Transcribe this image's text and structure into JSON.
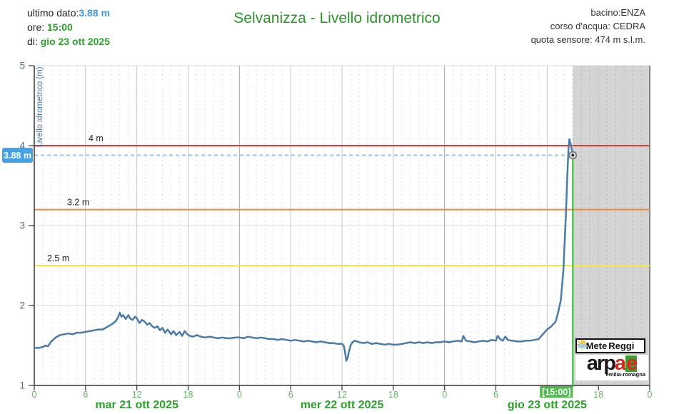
{
  "header": {
    "last_data_label": "ultimo dato:",
    "last_data_value": "3.88 m",
    "time_label": "ore: ",
    "time_value": "15:00",
    "date_label": "di: ",
    "date_value": "gio 23 ott 2025",
    "title": "Selvanizza - Livello idrometrico",
    "basin": "bacino:ENZA",
    "watercourse": "corso d'acqua: CEDRA",
    "sensor_elevation": "quota sensore: 474 m s.l.m."
  },
  "chart_data": {
    "type": "line",
    "title": "Selvanizza - Livello idrometrico",
    "ylabel": "Livello idrometrico (m)",
    "ylim": [
      1,
      5
    ],
    "y_ticks": [
      1,
      2,
      3,
      4,
      5
    ],
    "x_unit": "hours since 2025-10-21 00:00",
    "xlim": [
      0,
      72
    ],
    "x_tick_step_hours": 6,
    "grid": "on",
    "day_labels": [
      {
        "text": "mar 21 ott 2025",
        "center_hour": 12
      },
      {
        "text": "mer 22 ott 2025",
        "center_hour": 36
      },
      {
        "text": "gio 23 ott 2025",
        "center_hour": 60
      }
    ],
    "thresholds": [
      {
        "label": "2.5 m",
        "value": 2.5,
        "color": "#ffe433"
      },
      {
        "label": "3.2 m",
        "value": 3.2,
        "color": "#ef8a3a"
      },
      {
        "label": "4 m",
        "value": 4.0,
        "color": "#e53935"
      }
    ],
    "current": {
      "value": 3.88,
      "label": "3.88 m",
      "hour": 63,
      "time_badge": "[15:00]"
    },
    "future_region_start_hour": 63,
    "series": [
      {
        "name": "Livello idrometrico",
        "color": "#4a7aa8",
        "points": [
          [
            0,
            1.47
          ],
          [
            0.5,
            1.47
          ],
          [
            1,
            1.48
          ],
          [
            1.3,
            1.5
          ],
          [
            1.6,
            1.49
          ],
          [
            2,
            1.55
          ],
          [
            2.5,
            1.6
          ],
          [
            3,
            1.63
          ],
          [
            3.5,
            1.64
          ],
          [
            4,
            1.65
          ],
          [
            4.5,
            1.64
          ],
          [
            5,
            1.66
          ],
          [
            5.5,
            1.66
          ],
          [
            6,
            1.67
          ],
          [
            6.5,
            1.68
          ],
          [
            7,
            1.69
          ],
          [
            7.5,
            1.7
          ],
          [
            8,
            1.7
          ],
          [
            8.5,
            1.73
          ],
          [
            9,
            1.76
          ],
          [
            9.5,
            1.8
          ],
          [
            9.8,
            1.85
          ],
          [
            10,
            1.91
          ],
          [
            10.2,
            1.86
          ],
          [
            10.4,
            1.88
          ],
          [
            10.7,
            1.83
          ],
          [
            11,
            1.88
          ],
          [
            11.2,
            1.84
          ],
          [
            11.5,
            1.82
          ],
          [
            11.8,
            1.86
          ],
          [
            12,
            1.84
          ],
          [
            12.3,
            1.78
          ],
          [
            12.6,
            1.82
          ],
          [
            12.9,
            1.8
          ],
          [
            13.2,
            1.76
          ],
          [
            13.5,
            1.78
          ],
          [
            13.8,
            1.74
          ],
          [
            14.1,
            1.72
          ],
          [
            14.4,
            1.74
          ],
          [
            14.7,
            1.69
          ],
          [
            15,
            1.72
          ],
          [
            15.3,
            1.66
          ],
          [
            15.6,
            1.7
          ],
          [
            16,
            1.64
          ],
          [
            16.3,
            1.68
          ],
          [
            16.6,
            1.63
          ],
          [
            17,
            1.67
          ],
          [
            17.3,
            1.62
          ],
          [
            17.6,
            1.68
          ],
          [
            17.9,
            1.64
          ],
          [
            18.2,
            1.62
          ],
          [
            18.6,
            1.61
          ],
          [
            19,
            1.63
          ],
          [
            19.5,
            1.61
          ],
          [
            20,
            1.6
          ],
          [
            20.5,
            1.61
          ],
          [
            21,
            1.6
          ],
          [
            21.5,
            1.59
          ],
          [
            22,
            1.6
          ],
          [
            22.5,
            1.59
          ],
          [
            23,
            1.59
          ],
          [
            23.5,
            1.6
          ],
          [
            24,
            1.6
          ],
          [
            24.5,
            1.59
          ],
          [
            25,
            1.61
          ],
          [
            25.5,
            1.6
          ],
          [
            26,
            1.59
          ],
          [
            26.5,
            1.6
          ],
          [
            27,
            1.59
          ],
          [
            27.5,
            1.58
          ],
          [
            28,
            1.58
          ],
          [
            28.5,
            1.57
          ],
          [
            29,
            1.58
          ],
          [
            29.5,
            1.57
          ],
          [
            30,
            1.56
          ],
          [
            30.5,
            1.57
          ],
          [
            31,
            1.56
          ],
          [
            31.5,
            1.55
          ],
          [
            32,
            1.56
          ],
          [
            32.5,
            1.55
          ],
          [
            33,
            1.54
          ],
          [
            33.5,
            1.55
          ],
          [
            34,
            1.54
          ],
          [
            34.5,
            1.53
          ],
          [
            35,
            1.53
          ],
          [
            35.5,
            1.52
          ],
          [
            36,
            1.52
          ],
          [
            36.2,
            1.5
          ],
          [
            36.35,
            1.42
          ],
          [
            36.5,
            1.31
          ],
          [
            36.65,
            1.34
          ],
          [
            36.8,
            1.42
          ],
          [
            37,
            1.5
          ],
          [
            37.2,
            1.54
          ],
          [
            37.5,
            1.56
          ],
          [
            37.8,
            1.55
          ],
          [
            38,
            1.54
          ],
          [
            38.5,
            1.53
          ],
          [
            39,
            1.54
          ],
          [
            39.5,
            1.52
          ],
          [
            40,
            1.53
          ],
          [
            40.5,
            1.52
          ],
          [
            41,
            1.51
          ],
          [
            41.5,
            1.52
          ],
          [
            42,
            1.51
          ],
          [
            42.5,
            1.51
          ],
          [
            43,
            1.52
          ],
          [
            43.5,
            1.53
          ],
          [
            44,
            1.54
          ],
          [
            44.5,
            1.53
          ],
          [
            45,
            1.54
          ],
          [
            45.5,
            1.53
          ],
          [
            46,
            1.54
          ],
          [
            46.5,
            1.53
          ],
          [
            47,
            1.54
          ],
          [
            47.5,
            1.54
          ],
          [
            48,
            1.55
          ],
          [
            48.5,
            1.54
          ],
          [
            49,
            1.55
          ],
          [
            49.5,
            1.56
          ],
          [
            50,
            1.55
          ],
          [
            50.2,
            1.62
          ],
          [
            50.5,
            1.56
          ],
          [
            51,
            1.55
          ],
          [
            51.5,
            1.54
          ],
          [
            52,
            1.55
          ],
          [
            52.5,
            1.56
          ],
          [
            53,
            1.55
          ],
          [
            53.5,
            1.57
          ],
          [
            54,
            1.56
          ],
          [
            54.2,
            1.62
          ],
          [
            54.5,
            1.58
          ],
          [
            54.8,
            1.56
          ],
          [
            55.1,
            1.61
          ],
          [
            55.4,
            1.57
          ],
          [
            55.8,
            1.56
          ],
          [
            56,
            1.56
          ],
          [
            56.5,
            1.55
          ],
          [
            57,
            1.55
          ],
          [
            57.5,
            1.56
          ],
          [
            58,
            1.56
          ],
          [
            58.5,
            1.57
          ],
          [
            59,
            1.58
          ],
          [
            59.5,
            1.64
          ],
          [
            60,
            1.7
          ],
          [
            60.5,
            1.74
          ],
          [
            61,
            1.8
          ],
          [
            61.3,
            1.92
          ],
          [
            61.6,
            2.07
          ],
          [
            61.9,
            2.45
          ],
          [
            62.2,
            3.15
          ],
          [
            62.35,
            3.6
          ],
          [
            62.5,
            3.98
          ],
          [
            62.6,
            4.08
          ],
          [
            62.75,
            4.02
          ],
          [
            63,
            3.88
          ]
        ]
      }
    ],
    "colors": {
      "grid_minor": "#dedede",
      "grid_minor_future": "#b2b2b2",
      "grid_major": "#c4c4c4",
      "grid_day": "#a6a6a6",
      "grid_horizontal": "#d8d8d8",
      "axis": "#333333",
      "plot_right_border": "#666666",
      "future_bg": "#d4d4d4",
      "current_line": "#8ec9f0",
      "current_badge_bg": "#45a1e5",
      "current_badge_text": "#ffffff",
      "time_line_green": "#2fbe2f",
      "time_badge_bg": "#4cbb4c",
      "time_badge_text": "#ffffff",
      "hour_label": "#66b366",
      "day_label": "#2aa22a",
      "y_label": "#4a6c8c",
      "y_title": "#4878a8",
      "threshold_label": "#222222",
      "marker_ring": "#808080",
      "marker_dot": "#222222"
    }
  },
  "logos": {
    "meteo_reggio": {
      "part1": "Mete",
      "part2": "Reggi"
    },
    "arpae": {
      "black": "arp",
      "red_a": "a",
      "green_e": "e",
      "subtitle": "emilia-romagna"
    }
  }
}
